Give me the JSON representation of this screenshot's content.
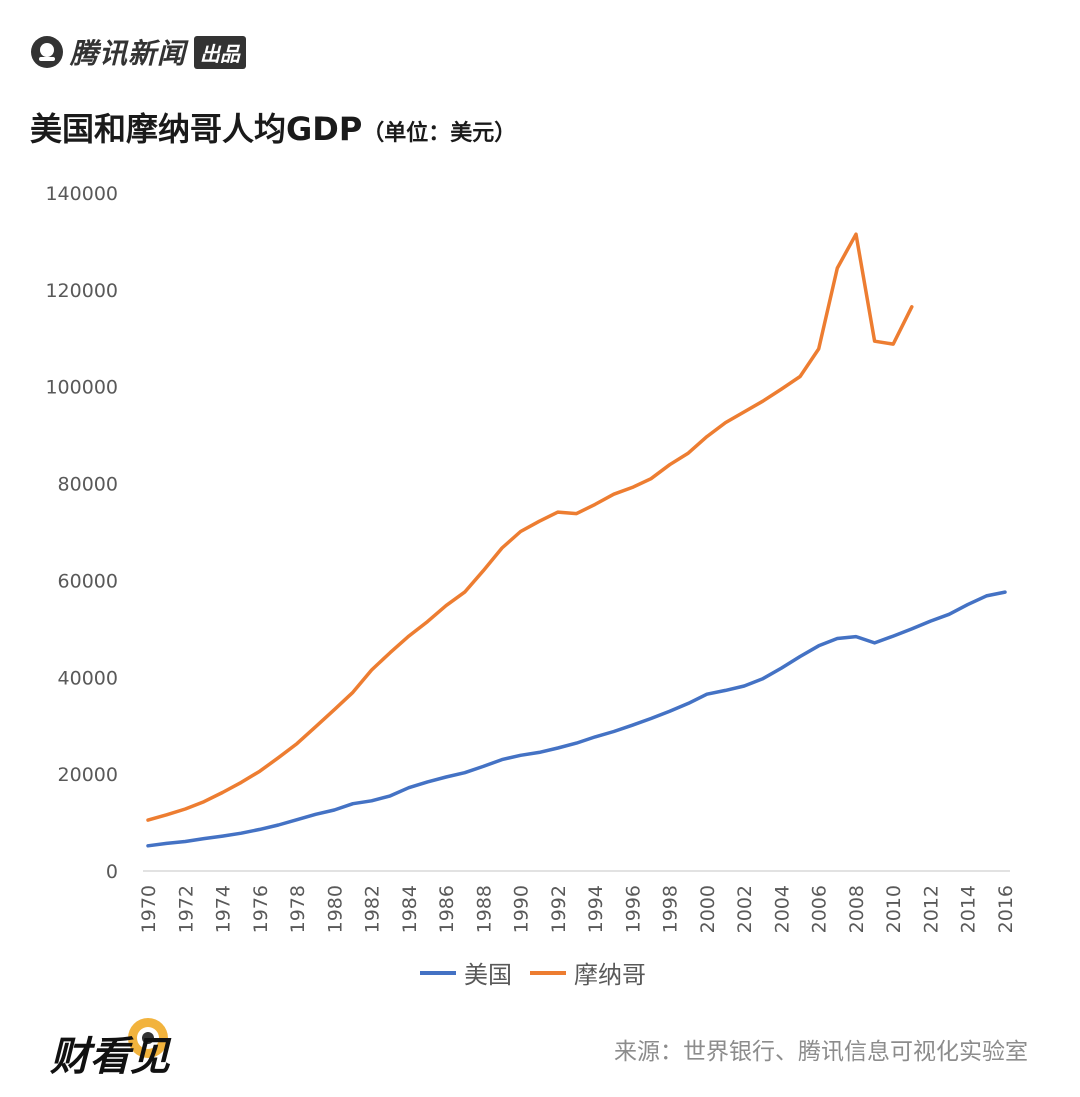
{
  "brand": {
    "name": "腾讯新闻",
    "badge": "出品"
  },
  "title": {
    "main": "美国和摩纳哥人均GDP",
    "unit": "（单位：美元）"
  },
  "footer": {
    "logo_text": "财看见",
    "source": "来源：世界银行、腾讯信息可视化实验室"
  },
  "chart_data": {
    "type": "line",
    "title": "美国和摩纳哥人均GDP（单位：美元）",
    "xlabel": "",
    "ylabel": "",
    "ylim": [
      0,
      140000
    ],
    "yticks": [
      0,
      20000,
      40000,
      60000,
      80000,
      100000,
      120000,
      140000
    ],
    "xticks": [
      1970,
      1972,
      1974,
      1976,
      1978,
      1980,
      1982,
      1984,
      1986,
      1988,
      1990,
      1992,
      1994,
      1996,
      1998,
      2000,
      2002,
      2004,
      2006,
      2008,
      2010,
      2012,
      2014,
      2016
    ],
    "x": [
      1970,
      1971,
      1972,
      1973,
      1974,
      1975,
      1976,
      1977,
      1978,
      1979,
      1980,
      1981,
      1982,
      1983,
      1984,
      1985,
      1986,
      1987,
      1988,
      1989,
      1990,
      1991,
      1992,
      1993,
      1994,
      1995,
      1996,
      1997,
      1998,
      1999,
      2000,
      2001,
      2002,
      2003,
      2004,
      2005,
      2006,
      2007,
      2008,
      2009,
      2010,
      2011,
      2012,
      2013,
      2014,
      2015,
      2016
    ],
    "legend_position": "bottom",
    "series": [
      {
        "name": "美国",
        "color": "#4472C4",
        "values": [
          5200,
          5700,
          6100,
          6700,
          7200,
          7800,
          8600,
          9500,
          10600,
          11700,
          12600,
          13900,
          14500,
          15500,
          17200,
          18400,
          19400,
          20300,
          21600,
          23000,
          23900,
          24500,
          25400,
          26400,
          27700,
          28800,
          30100,
          31500,
          33000,
          34600,
          36500,
          37300,
          38200,
          39700,
          41900,
          44300,
          46500,
          48000,
          48400,
          47100,
          48500,
          50000,
          51600,
          53000,
          55000,
          56800,
          57600
        ]
      },
      {
        "name": "摩纳哥",
        "color": "#ED7D31",
        "values": [
          10500,
          11600,
          12800,
          14300,
          16200,
          18300,
          20600,
          23400,
          26300,
          29800,
          33300,
          36900,
          41500,
          45100,
          48500,
          51500,
          54800,
          57600,
          62000,
          66700,
          70100,
          72200,
          74100,
          73800,
          75700,
          77800,
          79200,
          81000,
          83900,
          86300,
          89700,
          92600,
          94800,
          97000,
          99500,
          102100,
          107800,
          124500,
          131500,
          109400,
          108800,
          116500,
          null,
          null,
          null,
          null,
          null
        ]
      }
    ]
  }
}
